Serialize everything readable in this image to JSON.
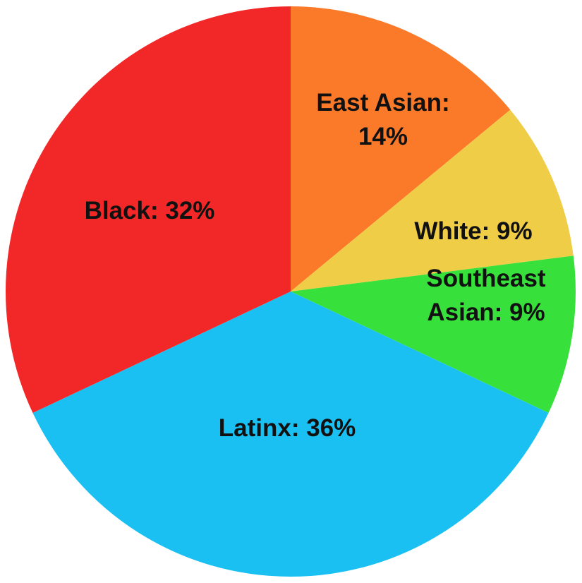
{
  "chart_data": {
    "type": "pie",
    "start_angle_deg": 0,
    "direction": "clockwise",
    "slices": [
      {
        "category": "East Asian",
        "value": 14,
        "color": "#fa7a2a",
        "label_lines": [
          "East Asian:",
          "14%"
        ]
      },
      {
        "category": "White",
        "value": 9,
        "color": "#f0cd47",
        "label_lines": [
          "White: 9%"
        ]
      },
      {
        "category": "Southeast Asian",
        "value": 9,
        "color": "#37e03b",
        "label_lines": [
          "Southeast",
          "Asian: 9%"
        ]
      },
      {
        "category": "Latinx",
        "value": 36,
        "color": "#1ac0f2",
        "label_lines": [
          "Latinx: 36%"
        ]
      },
      {
        "category": "Black",
        "value": 32,
        "color": "#f22828",
        "label_lines": [
          "Black: 32%"
        ]
      }
    ]
  }
}
